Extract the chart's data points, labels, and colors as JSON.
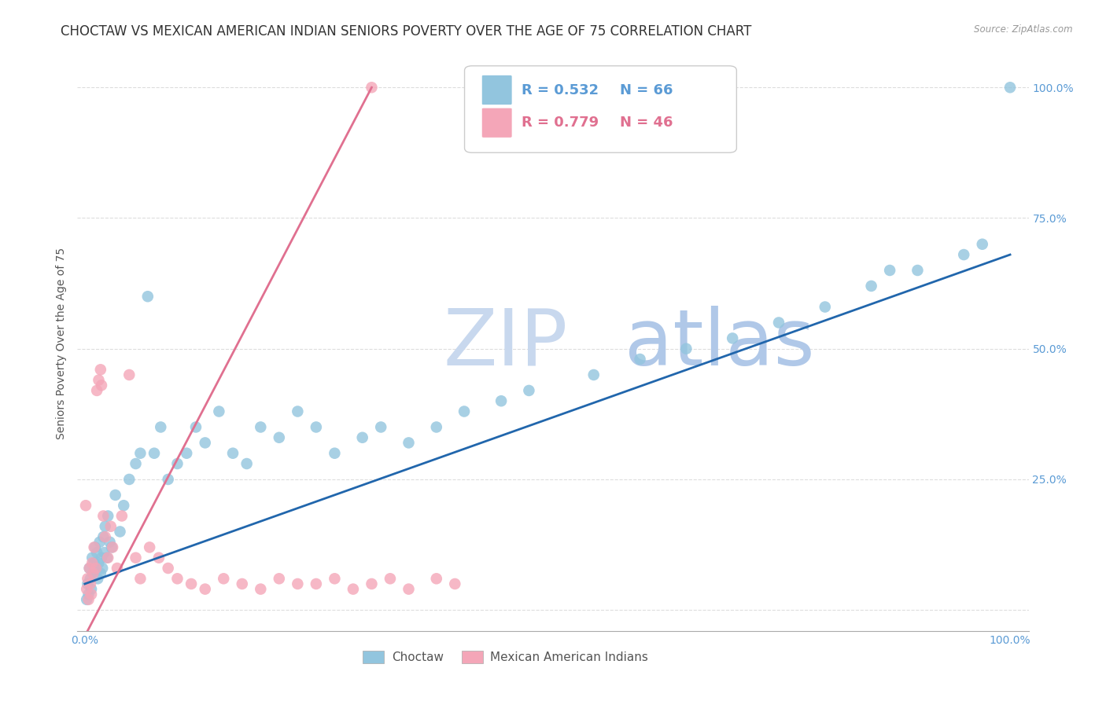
{
  "title": "CHOCTAW VS MEXICAN AMERICAN INDIAN SENIORS POVERTY OVER THE AGE OF 75 CORRELATION CHART",
  "source": "Source: ZipAtlas.com",
  "ylabel": "Seniors Poverty Over the Age of 75",
  "blue_color": "#92c5de",
  "pink_color": "#f4a6b8",
  "blue_line_color": "#2166ac",
  "pink_line_color": "#e07090",
  "R_blue": 0.532,
  "N_blue": 66,
  "R_pink": 0.779,
  "N_pink": 46,
  "watermark_zip": "ZIP",
  "watermark_atlas": "atlas",
  "watermark_color_zip": "#c8d8ee",
  "watermark_color_atlas": "#b0c8e8",
  "background_color": "#ffffff",
  "grid_color": "#dddddd",
  "tick_color": "#5b9bd5",
  "title_fontsize": 12,
  "axis_label_fontsize": 10,
  "tick_fontsize": 10
}
